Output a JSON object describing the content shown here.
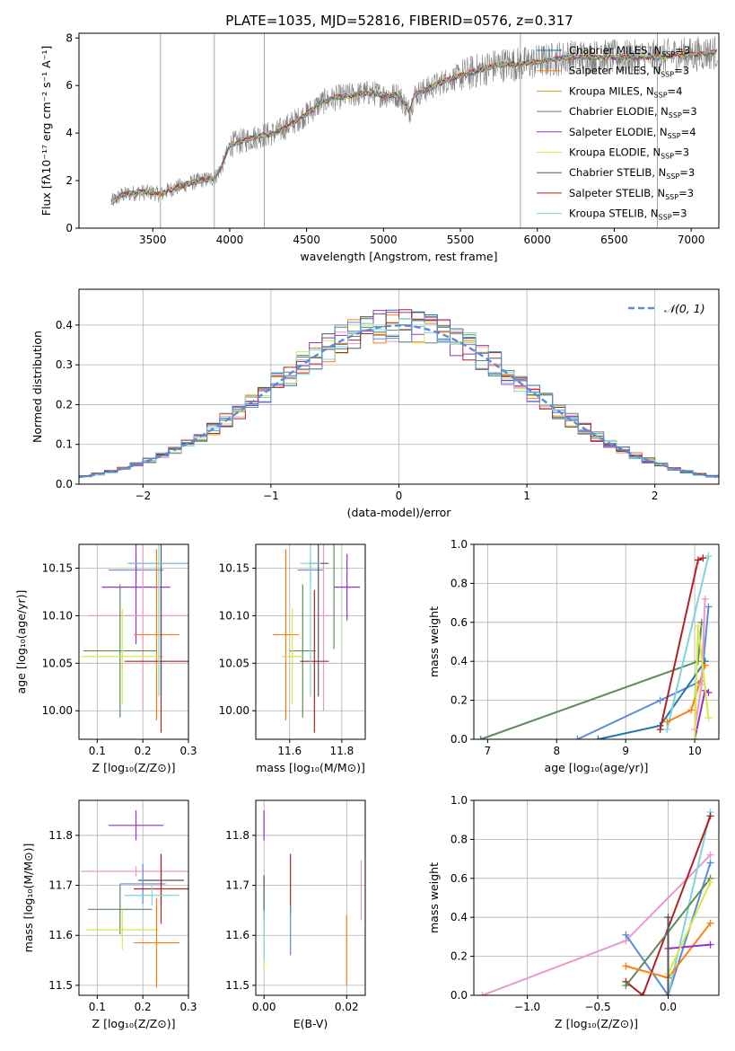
{
  "chart_data": [
    {
      "id": "spectrum",
      "type": "line",
      "title": "PLATE=1035, MJD=52816, FIBERID=0576, z=0.317",
      "xlabel": "wavelength [Angstrom, rest frame]",
      "ylabel": "Flux [fλ10⁻¹⁷ erg cm⁻² s⁻¹ A⁻¹]",
      "xlim": [
        3020,
        7180
      ],
      "ylim": [
        0,
        8.2
      ],
      "xticks": [
        3500,
        4000,
        4500,
        5000,
        5500,
        6000,
        6500,
        7000
      ],
      "yticks": [
        0,
        2,
        4,
        6,
        8
      ],
      "data_color": "#808080",
      "continuum_x": [
        3230,
        3300,
        3400,
        3500,
        3550,
        3600,
        3700,
        3800,
        3900,
        3950,
        4000,
        4100,
        4200,
        4300,
        4400,
        4500,
        4600,
        4700,
        4800,
        4900,
        5000,
        5100,
        5170,
        5200,
        5300,
        5400,
        5500,
        5600,
        5700,
        5800,
        5900,
        6000,
        6100,
        6200,
        6300,
        6400,
        6500,
        6600,
        6700,
        6800,
        6900,
        7000,
        7150
      ],
      "continuum_y": [
        1.1,
        1.4,
        1.5,
        1.5,
        1.4,
        1.6,
        1.8,
        2.0,
        2.1,
        2.6,
        3.5,
        3.7,
        3.9,
        4.0,
        4.4,
        4.8,
        5.3,
        5.5,
        5.6,
        5.7,
        5.6,
        5.6,
        4.9,
        5.6,
        5.9,
        6.2,
        6.4,
        6.6,
        6.8,
        6.9,
        6.9,
        7.0,
        7.1,
        7.2,
        7.2,
        7.2,
        7.2,
        7.2,
        7.2,
        7.2,
        7.3,
        7.3,
        7.4
      ],
      "legend": [
        {
          "label": "Chabrier MILES, N",
          "sub": "SSP",
          "suffix": "=3",
          "color": "#1f77b4"
        },
        {
          "label": "Salpeter MILES, N",
          "sub": "SSP",
          "suffix": "=3",
          "color": "#ff7f0e"
        },
        {
          "label": "Kroupa MILES, N",
          "sub": "SSP",
          "suffix": "=4",
          "color": "#d39a2b"
        },
        {
          "label": "Chabrier ELODIE, N",
          "sub": "SSP",
          "suffix": "=3",
          "color": "#5b8c5a"
        },
        {
          "label": "Salpeter ELODIE, N",
          "sub": "SSP",
          "suffix": "=4",
          "color": "#9b30c8"
        },
        {
          "label": "Kroupa ELODIE, N",
          "sub": "SSP",
          "suffix": "=3",
          "color": "#d6e84a"
        },
        {
          "label": "Chabrier STELIB, N",
          "sub": "SSP",
          "suffix": "=3",
          "color": "#555555"
        },
        {
          "label": "Salpeter STELIB, N",
          "sub": "SSP",
          "suffix": "=3",
          "color": "#b22222"
        },
        {
          "label": "Kroupa STELIB, N",
          "sub": "SSP",
          "suffix": "=3",
          "color": "#7fd4dc"
        }
      ]
    },
    {
      "id": "residuals",
      "type": "line",
      "xlabel": "(data-model)/error",
      "ylabel": "Normed distribution",
      "xlim": [
        -2.5,
        2.5
      ],
      "ylim": [
        0,
        0.49
      ],
      "xticks": [
        -2,
        -1,
        0,
        1,
        2
      ],
      "yticks": [
        0.0,
        0.1,
        0.2,
        0.3,
        0.4
      ],
      "gaussian_label": "𝒩(0, 1)",
      "gaussian_color": "#5b8bd6",
      "hist_colors": [
        "#1f77b4",
        "#e69acb",
        "#ff7f0e",
        "#5b8c5a",
        "#9b30c8",
        "#d6e84a",
        "#555555",
        "#b22222",
        "#7fd4dc",
        "#5b8bd6"
      ],
      "hist_bin_width": 0.1
    },
    {
      "id": "age-vs-Z",
      "type": "scatter",
      "xlabel": "Z [log₁₀(Z/Z⊙)]",
      "ylabel": "age  [log₁₀(age/yr)]",
      "xlim": [
        0.06,
        0.3
      ],
      "ylim": [
        9.97,
        10.175
      ],
      "xticks": [
        0.1,
        0.2,
        0.3
      ],
      "yticks": [
        10.0,
        10.05,
        10.1,
        10.15
      ],
      "points": [
        {
          "x": 0.185,
          "y": 10.148,
          "xerr": 0.06,
          "yerr": 0.012,
          "color": "#5b8bd6"
        },
        {
          "x": 0.185,
          "y": 10.13,
          "xerr": 0.075,
          "yerr": 0.06,
          "color": "#9b30c8"
        },
        {
          "x": 0.2,
          "y": 10.1,
          "xerr": 0.12,
          "yerr": 0.1,
          "color": "#e69acb"
        },
        {
          "x": 0.23,
          "y": 10.08,
          "xerr": 0.05,
          "yerr": 0.09,
          "color": "#ff7f0e"
        },
        {
          "x": 0.15,
          "y": 10.063,
          "xerr": 0.08,
          "yerr": 0.07,
          "color": "#5b8c5a"
        },
        {
          "x": 0.155,
          "y": 10.057,
          "xerr": 0.09,
          "yerr": 0.05,
          "color": "#d6e84a"
        },
        {
          "x": 0.24,
          "y": 10.052,
          "xerr": 0.08,
          "yerr": 0.075,
          "color": "#b22222"
        },
        {
          "x": 0.24,
          "y": 10.155,
          "xerr": 0.07,
          "yerr": 0.14,
          "color": "#555555"
        },
        {
          "x": 0.235,
          "y": 10.155,
          "xerr": 0.07,
          "yerr": 0.14,
          "color": "#7fd4dc"
        }
      ]
    },
    {
      "id": "age-vs-mass",
      "type": "scatter",
      "xlabel": "mass [log₁₀(M/M⊙)]",
      "xlim": [
        11.47,
        11.89
      ],
      "ylim": [
        9.97,
        10.175
      ],
      "xticks": [
        11.6,
        11.8
      ],
      "yticks": [
        10.0,
        10.05,
        10.1,
        10.15
      ],
      "points": [
        {
          "x": 11.68,
          "y": 10.148,
          "xerr": 0.05,
          "yerr": 0.012,
          "color": "#5b8bd6"
        },
        {
          "x": 11.82,
          "y": 10.13,
          "xerr": 0.05,
          "yerr": 0.035,
          "color": "#9b30c8"
        },
        {
          "x": 11.73,
          "y": 10.1,
          "xerr": 0.04,
          "yerr": 0.1,
          "color": "#e69acb"
        },
        {
          "x": 11.585,
          "y": 10.08,
          "xerr": 0.05,
          "yerr": 0.09,
          "color": "#ff7f0e"
        },
        {
          "x": 11.65,
          "y": 10.063,
          "xerr": 0.05,
          "yerr": 0.07,
          "color": "#5b8c5a"
        },
        {
          "x": 11.61,
          "y": 10.057,
          "xerr": 0.04,
          "yerr": 0.05,
          "color": "#d6e84a"
        },
        {
          "x": 11.695,
          "y": 10.052,
          "xerr": 0.055,
          "yerr": 0.075,
          "color": "#b22222"
        },
        {
          "x": 11.71,
          "y": 10.155,
          "xerr": 0.04,
          "yerr": 0.14,
          "color": "#555555"
        },
        {
          "x": 11.68,
          "y": 10.155,
          "xerr": 0.04,
          "yerr": 0.14,
          "color": "#7fd4dc"
        },
        {
          "x": 11.77,
          "y": 10.155,
          "xerr": 0.0,
          "yerr": 0.09,
          "color": "#5b8c5a"
        }
      ]
    },
    {
      "id": "mass-weight-vs-age",
      "type": "line",
      "xlabel": "age  [log₁₀(age/yr)]",
      "ylabel": "mass weight",
      "xlim": [
        6.8,
        10.35
      ],
      "ylim": [
        0,
        1.0
      ],
      "xticks": [
        7,
        8,
        9,
        10
      ],
      "yticks": [
        0.0,
        0.2,
        0.4,
        0.6,
        0.8,
        1.0
      ],
      "series": [
        {
          "color": "#5b8c5a",
          "x": [
            6.9,
            10.05,
            10.1
          ],
          "y": [
            0.0,
            0.4,
            0.6
          ]
        },
        {
          "color": "#5b8bd6",
          "x": [
            8.3,
            9.5,
            10.1,
            10.2
          ],
          "y": [
            0.0,
            0.2,
            0.3,
            0.68
          ]
        },
        {
          "color": "#1f77b4",
          "x": [
            8.6,
            9.5,
            10.15
          ],
          "y": [
            0.0,
            0.07,
            0.4
          ]
        },
        {
          "color": "#b22222",
          "x": [
            9.5,
            10.05,
            10.12
          ],
          "y": [
            0.05,
            0.92,
            0.93
          ]
        },
        {
          "color": "#7fd4dc",
          "x": [
            9.6,
            10.2
          ],
          "y": [
            0.05,
            0.94
          ]
        },
        {
          "color": "#ff7f0e",
          "x": [
            9.6,
            9.95,
            10.15
          ],
          "y": [
            0.09,
            0.15,
            0.38
          ]
        },
        {
          "color": "#9b30c8",
          "x": [
            10.0,
            10.15,
            10.2
          ],
          "y": [
            0.0,
            0.25,
            0.24
          ]
        },
        {
          "color": "#e69acb",
          "x": [
            10.0,
            10.1,
            10.15
          ],
          "y": [
            0.05,
            0.28,
            0.72
          ]
        },
        {
          "color": "#d6e84a",
          "x": [
            10.0,
            10.05,
            10.2
          ],
          "y": [
            0.0,
            0.58,
            0.11
          ]
        }
      ]
    },
    {
      "id": "mass-vs-Z",
      "type": "scatter",
      "xlabel": "Z [log₁₀(Z/Z⊙)]",
      "ylabel": "mass [log₁₀(M/M⊙)]",
      "xlim": [
        0.06,
        0.3
      ],
      "ylim": [
        11.48,
        11.87
      ],
      "xticks": [
        0.1,
        0.2,
        0.3
      ],
      "yticks": [
        11.5,
        11.6,
        11.7,
        11.8
      ],
      "points": [
        {
          "x": 0.185,
          "y": 11.82,
          "xerr": 0.06,
          "yerr": 0.03,
          "color": "#9b30c8"
        },
        {
          "x": 0.185,
          "y": 11.728,
          "xerr": 0.12,
          "yerr": 0.01,
          "color": "#e69acb"
        },
        {
          "x": 0.24,
          "y": 11.71,
          "xerr": 0.05,
          "yerr": 0.05,
          "color": "#555555"
        },
        {
          "x": 0.2,
          "y": 11.703,
          "xerr": 0.05,
          "yerr": 0.04,
          "color": "#5b8bd6"
        },
        {
          "x": 0.24,
          "y": 11.693,
          "xerr": 0.06,
          "yerr": 0.07,
          "color": "#b22222"
        },
        {
          "x": 0.22,
          "y": 11.68,
          "xerr": 0.06,
          "yerr": 0.02,
          "color": "#7fd4dc"
        },
        {
          "x": 0.15,
          "y": 11.652,
          "xerr": 0.07,
          "yerr": 0.05,
          "color": "#5b8c5a"
        },
        {
          "x": 0.155,
          "y": 11.611,
          "xerr": 0.08,
          "yerr": 0.04,
          "color": "#d6e84a"
        },
        {
          "x": 0.23,
          "y": 11.585,
          "xerr": 0.05,
          "yerr": 0.09,
          "color": "#ff7f0e"
        }
      ]
    },
    {
      "id": "mass-vs-ebv",
      "type": "scatter",
      "xlabel": "E(B-V)",
      "xlim": [
        -0.002,
        0.0245
      ],
      "ylim": [
        11.48,
        11.87
      ],
      "xticks": [
        0.0,
        0.02
      ],
      "yticks": [
        11.5,
        11.6,
        11.7,
        11.8
      ],
      "points": [
        {
          "x": 0.0,
          "y": 11.82,
          "xerr": 0,
          "yerr": 0.03,
          "color": "#9b30c8"
        },
        {
          "x": 0.0,
          "y": 11.68,
          "xerr": 0,
          "yerr": 0.04,
          "color": "#555555"
        },
        {
          "x": 0.0,
          "y": 11.65,
          "xerr": 0,
          "yerr": 0.04,
          "color": "#5b8c5a"
        },
        {
          "x": 0.0,
          "y": 11.58,
          "xerr": 0,
          "yerr": 0.05,
          "color": "#d6e84a"
        },
        {
          "x": 0.0,
          "y": 11.6,
          "xerr": 0,
          "yerr": 0.05,
          "color": "#7fd4dc"
        },
        {
          "x": 0.0064,
          "y": 11.703,
          "xerr": 0,
          "yerr": 0.06,
          "color": "#b22222"
        },
        {
          "x": 0.0064,
          "y": 11.61,
          "xerr": 0,
          "yerr": 0.05,
          "color": "#5b8bd6"
        },
        {
          "x": 0.02,
          "y": 11.57,
          "xerr": 0,
          "yerr": 0.07,
          "color": "#ff7f0e"
        },
        {
          "x": 0.0235,
          "y": 11.69,
          "xerr": 0,
          "yerr": 0.06,
          "color": "#e69acb"
        }
      ]
    },
    {
      "id": "mass-weight-vs-Z",
      "type": "line",
      "xlabel": "Z [log₁₀(Z/Z⊙)]",
      "ylabel": "mass weight",
      "xlim": [
        -1.38,
        0.36
      ],
      "ylim": [
        0,
        1.0
      ],
      "xticks": [
        -1.0,
        -0.5,
        0.0
      ],
      "yticks": [
        0.0,
        0.2,
        0.4,
        0.6,
        0.8,
        1.0
      ],
      "series": [
        {
          "color": "#e69acb",
          "x": [
            -1.32,
            -0.3,
            0.3
          ],
          "y": [
            0.0,
            0.28,
            0.72
          ]
        },
        {
          "color": "#5b8bd6",
          "x": [
            -0.3,
            0.0,
            0.3
          ],
          "y": [
            0.31,
            0.0,
            0.68
          ]
        },
        {
          "color": "#7fd4dc",
          "x": [
            0.0,
            0.3
          ],
          "y": [
            0.0,
            0.94
          ]
        },
        {
          "color": "#b22222",
          "x": [
            -0.3,
            -0.18,
            0.3
          ],
          "y": [
            0.07,
            0.0,
            0.92
          ]
        },
        {
          "color": "#5b8c5a",
          "x": [
            -0.3,
            0.3
          ],
          "y": [
            0.05,
            0.6
          ]
        },
        {
          "color": "#ff7f0e",
          "x": [
            -0.3,
            0.0,
            0.3
          ],
          "y": [
            0.15,
            0.09,
            0.37
          ]
        },
        {
          "color": "#9b30c8",
          "x": [
            0.0,
            0.3
          ],
          "y": [
            0.24,
            0.26
          ]
        },
        {
          "color": "#d6e84a",
          "x": [
            0.0,
            0.3
          ],
          "y": [
            0.11,
            0.58
          ]
        },
        {
          "color": "#555555",
          "x": [
            0.0,
            0.0
          ],
          "y": [
            0.0,
            0.4
          ]
        }
      ]
    }
  ]
}
